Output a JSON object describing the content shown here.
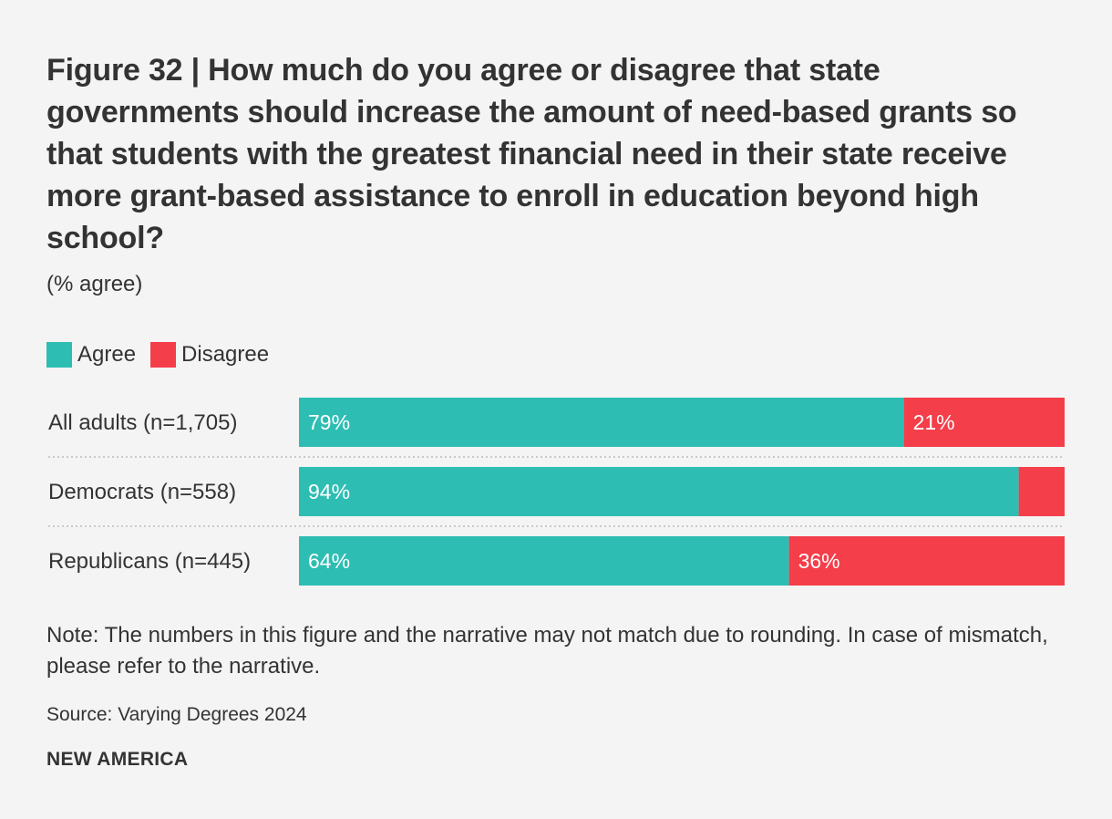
{
  "title": "Figure 32 | How much do you agree or disagree that state governments should increase the amount of need-based grants so that students with the greatest financial need in their state receive more grant-based assistance to enroll in education beyond high school?",
  "subtitle": "(% agree)",
  "legend": [
    {
      "label": "Agree",
      "color": "#2ebdb3"
    },
    {
      "label": "Disagree",
      "color": "#f43e4a"
    }
  ],
  "chart_data": {
    "type": "bar",
    "orientation": "horizontal",
    "stacked": true,
    "categories": [
      "All adults (n=1,705)",
      "Democrats (n=558)",
      "Republicans (n=445)"
    ],
    "series": [
      {
        "name": "Agree",
        "color": "#2ebdb3",
        "values": [
          79,
          94,
          64
        ],
        "labels": [
          "79%",
          "94%",
          "64%"
        ]
      },
      {
        "name": "Disagree",
        "color": "#f43e4a",
        "values": [
          21,
          6,
          36
        ],
        "labels": [
          "21%",
          "",
          "36%"
        ]
      }
    ],
    "xlim": [
      0,
      100
    ],
    "grid": false
  },
  "note": "Note: The numbers in this figure and the narrative may not match due to rounding. In case of mismatch, please refer to the narrative.",
  "source": "Source: Varying Degrees 2024",
  "brand": "NEW AMERICA"
}
